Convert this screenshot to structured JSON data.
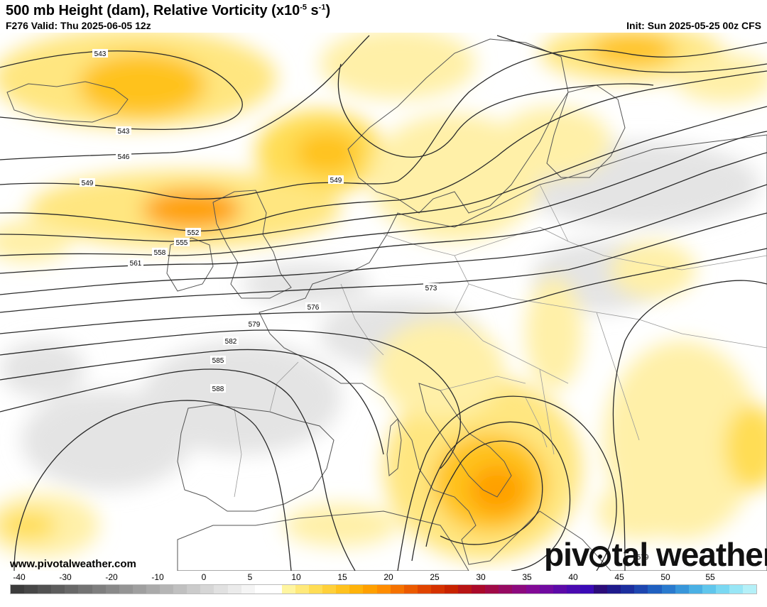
{
  "header": {
    "title_main": "500 mb Height (dam), Relative Vorticity (x10",
    "title_exp": "-5",
    "title_unit": " s",
    "title_exp2": "-1",
    "title_close": ")",
    "valid": "F276 Valid: Thu 2025-06-05 12z",
    "init": "Init: Sun 2025-05-25 00z CFS"
  },
  "footer": {
    "url": "www.pivotalweather.com",
    "logo_left": "piv",
    "logo_right": "tal weather"
  },
  "contour_labels": [
    {
      "text": "543",
      "id": "543a"
    },
    {
      "text": "543",
      "id": "543b"
    },
    {
      "text": "546",
      "id": "546"
    },
    {
      "text": "549",
      "id": "549a"
    },
    {
      "text": "549",
      "id": "549b"
    },
    {
      "text": "552",
      "id": "552"
    },
    {
      "text": "555",
      "id": "555"
    },
    {
      "text": "558",
      "id": "558"
    },
    {
      "text": "561",
      "id": "561"
    },
    {
      "text": "573",
      "id": "573"
    },
    {
      "text": "576",
      "id": "576"
    },
    {
      "text": "579",
      "id": "579a"
    },
    {
      "text": "582",
      "id": "582"
    },
    {
      "text": "585",
      "id": "585"
    },
    {
      "text": "588",
      "id": "588"
    },
    {
      "text": "579",
      "id": "579b"
    }
  ],
  "colorbar": {
    "ticks": [
      "-40",
      "-30",
      "-20",
      "-10",
      "0",
      "5",
      "10",
      "15",
      "20",
      "25",
      "30",
      "35",
      "40",
      "45",
      "50",
      "55"
    ],
    "colors": [
      "#3c3c3c",
      "#474747",
      "#525252",
      "#5d5d5d",
      "#686868",
      "#737373",
      "#7e7e7e",
      "#898989",
      "#949494",
      "#9f9f9f",
      "#aaaaaa",
      "#b5b5b5",
      "#c0c0c0",
      "#cbcbcb",
      "#d6d6d6",
      "#e1e1e1",
      "#ebebeb",
      "#f5f5f5",
      "#ffffff",
      "#ffffff",
      "#fff5a0",
      "#ffe97a",
      "#ffdd55",
      "#ffd03a",
      "#ffc21e",
      "#ffb30a",
      "#ffa000",
      "#ff8c00",
      "#f57200",
      "#eb5a00",
      "#e04400",
      "#d53200",
      "#c82300",
      "#b81515",
      "#aa0a2a",
      "#a00a46",
      "#960a62",
      "#8c0a7e",
      "#820a96",
      "#700aa0",
      "#5c0aa8",
      "#4a0ab0",
      "#3a0ab6",
      "#2c0c7a",
      "#1e1a8c",
      "#1c2e9e",
      "#1e46b0",
      "#2060c0",
      "#2a7ace",
      "#3896da",
      "#4ab0e4",
      "#60c6ec",
      "#7ad8f2",
      "#98e6f6",
      "#b4f0f8"
    ]
  }
}
